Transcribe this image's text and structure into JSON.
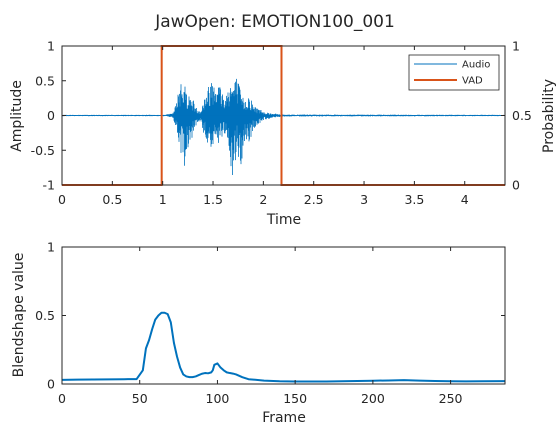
{
  "figure": {
    "title": "JawOpen: EMOTION100_001",
    "colors": {
      "audio": "#0072BD",
      "vad": "#D95319",
      "blend": "#0072BD",
      "axis": "#262626",
      "legend_border": "#262626"
    }
  },
  "chart_data": [
    {
      "type": "line",
      "title": "JawOpen: EMOTION100_001",
      "xlabel": "Time",
      "ylabel": "Amplitude",
      "ylabel_right": "Probability",
      "xlim": [
        0,
        4.4
      ],
      "ylim": [
        -1,
        1
      ],
      "ylim_right": [
        0,
        1
      ],
      "xticks": [
        "0",
        "0.5",
        "1",
        "1.5",
        "2",
        "2.5",
        "3",
        "3.5",
        "4"
      ],
      "yticks": [
        "-1",
        "-0.5",
        "0",
        "0.5",
        "1"
      ],
      "yticks_right": [
        "0",
        "0.5",
        "1"
      ],
      "legend": {
        "position": "top-right",
        "entries": [
          "Audio",
          "VAD"
        ]
      },
      "grid": false,
      "series": [
        {
          "name": "Audio",
          "axis": "left",
          "envelope": {
            "t": [
              0,
              1.0,
              1.1,
              1.14,
              1.18,
              1.22,
              1.26,
              1.3,
              1.34,
              1.38,
              1.42,
              1.46,
              1.5,
              1.54,
              1.58,
              1.62,
              1.66,
              1.7,
              1.74,
              1.78,
              1.82,
              1.86,
              1.9,
              1.96,
              2.02,
              2.1,
              2.2,
              4.4
            ],
            "upper": [
              0.01,
              0.01,
              0.03,
              0.2,
              0.6,
              0.45,
              0.3,
              0.25,
              0.1,
              0.08,
              0.3,
              0.45,
              0.62,
              0.55,
              0.42,
              0.25,
              0.52,
              0.48,
              0.58,
              0.3,
              0.22,
              0.33,
              0.15,
              0.1,
              0.05,
              0.03,
              0.015,
              0.01
            ],
            "lower": [
              -0.01,
              -0.01,
              -0.03,
              -0.25,
              -0.55,
              -0.75,
              -0.4,
              -0.3,
              -0.12,
              -0.1,
              -0.35,
              -0.45,
              -0.5,
              -0.42,
              -0.38,
              -0.3,
              -0.75,
              -0.95,
              -0.55,
              -0.8,
              -0.35,
              -0.42,
              -0.2,
              -0.12,
              -0.06,
              -0.03,
              -0.015,
              -0.01
            ]
          }
        },
        {
          "name": "VAD",
          "axis": "right",
          "x": [
            0,
            0.99,
            0.99,
            2.18,
            2.18,
            4.4
          ],
          "y": [
            0,
            0,
            1,
            1,
            0,
            0
          ]
        }
      ]
    },
    {
      "type": "line",
      "xlabel": "Frame",
      "ylabel": "Blendshape value",
      "xlim": [
        0,
        285
      ],
      "ylim": [
        0,
        1
      ],
      "xticks": [
        "0",
        "50",
        "100",
        "150",
        "200",
        "250"
      ],
      "yticks": [
        "0",
        "0.5",
        "1"
      ],
      "grid": false,
      "series": [
        {
          "x": [
            0,
            10,
            20,
            30,
            40,
            48,
            52,
            54,
            56,
            58,
            60,
            62,
            64,
            66,
            68,
            70,
            72,
            74,
            76,
            78,
            80,
            82,
            84,
            86,
            88,
            90,
            92,
            94,
            96,
            97,
            98,
            100,
            102,
            104,
            106,
            108,
            110,
            112,
            116,
            120,
            130,
            140,
            150,
            160,
            170,
            180,
            190,
            200,
            210,
            220,
            230,
            240,
            250,
            260,
            270,
            285
          ],
          "y": [
            0.03,
            0.032,
            0.033,
            0.034,
            0.035,
            0.036,
            0.1,
            0.26,
            0.32,
            0.4,
            0.47,
            0.5,
            0.52,
            0.52,
            0.51,
            0.45,
            0.3,
            0.2,
            0.12,
            0.07,
            0.055,
            0.05,
            0.05,
            0.055,
            0.065,
            0.075,
            0.08,
            0.078,
            0.085,
            0.1,
            0.14,
            0.15,
            0.12,
            0.1,
            0.085,
            0.08,
            0.076,
            0.07,
            0.05,
            0.035,
            0.025,
            0.02,
            0.018,
            0.018,
            0.018,
            0.02,
            0.022,
            0.024,
            0.026,
            0.028,
            0.025,
            0.022,
            0.02,
            0.019,
            0.02,
            0.021
          ]
        }
      ]
    }
  ]
}
